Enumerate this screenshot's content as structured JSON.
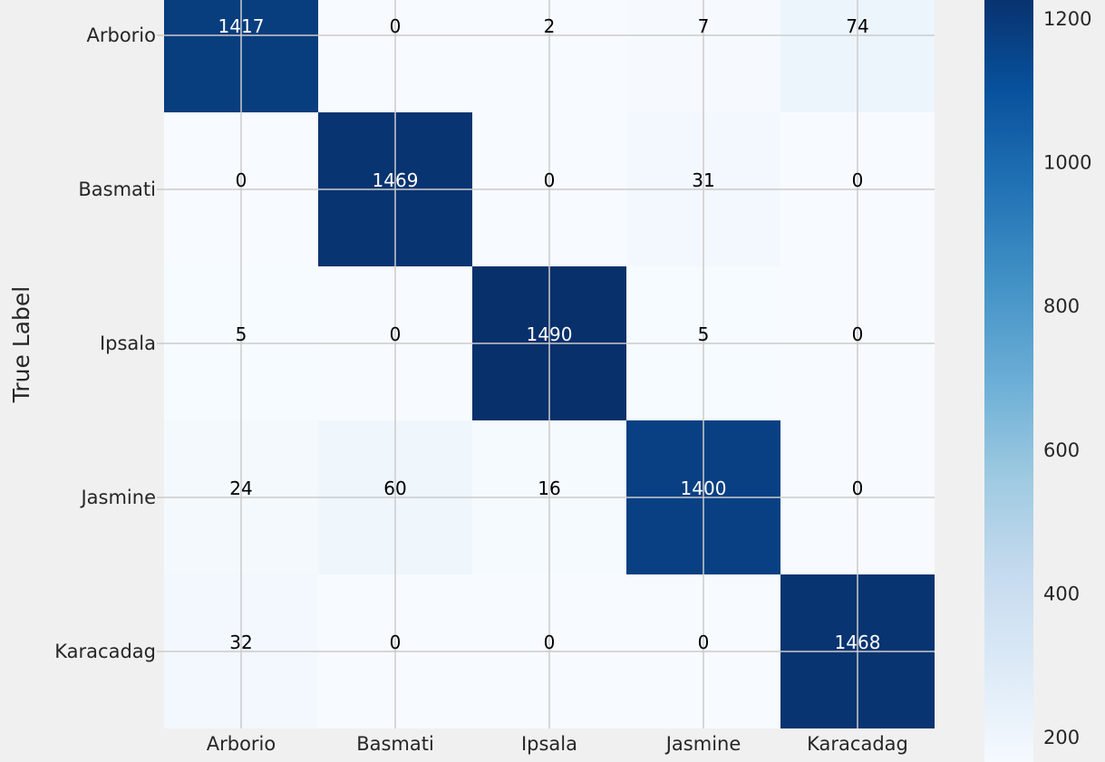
{
  "chart_data": {
    "type": "heatmap",
    "title": "",
    "xlabel": "",
    "ylabel": "True Label",
    "row_labels": [
      "Arborio",
      "Basmati",
      "Ipsala",
      "Jasmine",
      "Karacadag"
    ],
    "col_labels": [
      "Arborio",
      "Basmati",
      "Ipsala",
      "Jasmine",
      "Karacadag"
    ],
    "values": [
      [
        1417,
        0,
        2,
        7,
        74
      ],
      [
        0,
        1469,
        0,
        31,
        0
      ],
      [
        5,
        0,
        1490,
        5,
        0
      ],
      [
        24,
        60,
        16,
        1400,
        0
      ],
      [
        32,
        0,
        0,
        0,
        1468
      ]
    ],
    "colormap": "Blues",
    "colorbar": {
      "ticks": [
        "200",
        "400",
        "600",
        "800",
        "1000",
        "1200"
      ],
      "tick_values": [
        200,
        400,
        600,
        800,
        1000,
        1200
      ]
    },
    "grid": true,
    "colors": {
      "figure_bg": "#f0f0f0",
      "grid": "#cbcbcb",
      "text_dark": "#000000",
      "text_light": "#ffffff"
    }
  }
}
